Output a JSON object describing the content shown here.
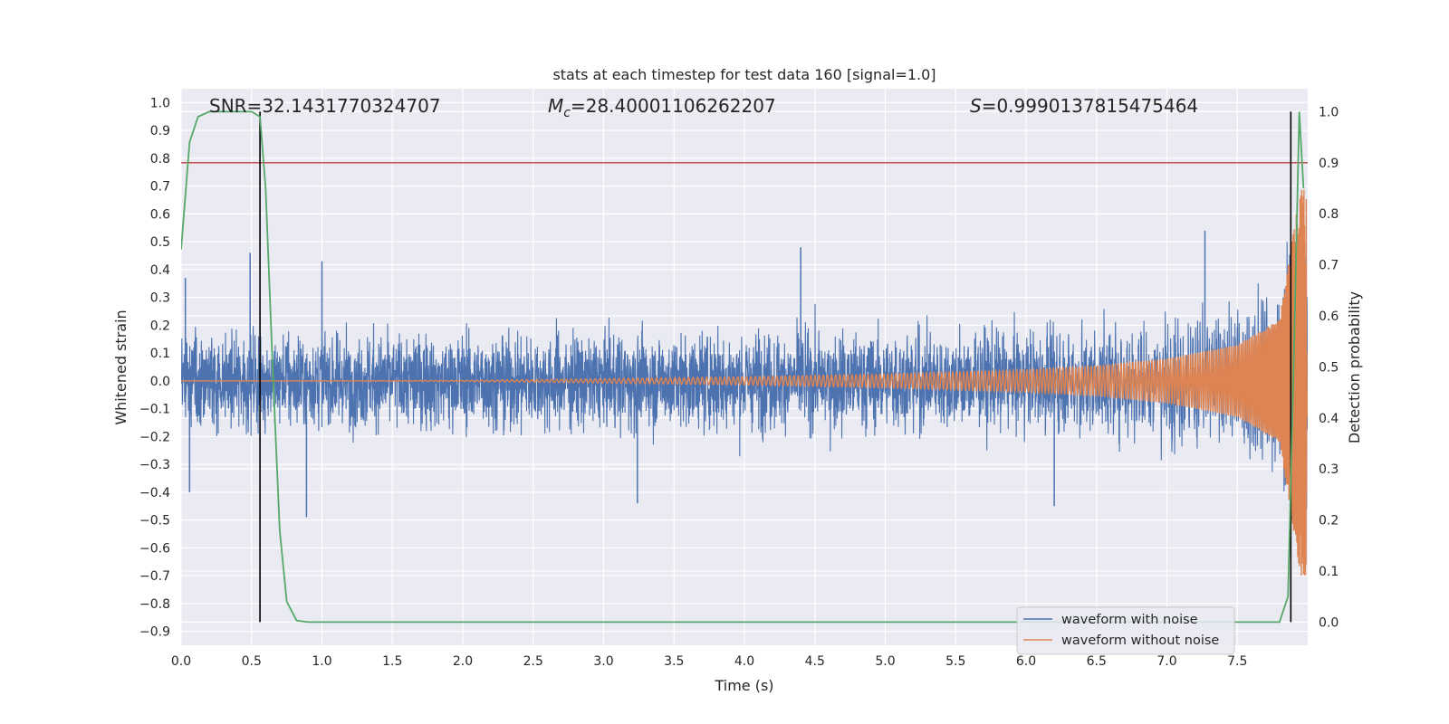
{
  "chart_data": {
    "type": "line",
    "title": "stats at each timestep for test data 160 [signal=1.0]",
    "xlabel": "Time (s)",
    "ylabel": "Whitened strain",
    "y2label": "Detection probability",
    "xlim": [
      0.0,
      8.0
    ],
    "ylim": [
      -0.95,
      1.05
    ],
    "y2lim": [
      -0.0455,
      1.045
    ],
    "xticks": [
      "0.0",
      "0.5",
      "1.0",
      "1.5",
      "2.0",
      "2.5",
      "3.0",
      "3.5",
      "4.0",
      "4.5",
      "5.0",
      "5.5",
      "6.0",
      "6.5",
      "7.0",
      "7.5"
    ],
    "yticks": [
      "1.0",
      "0.9",
      "0.8",
      "0.7",
      "0.6",
      "0.5",
      "0.4",
      "0.3",
      "0.2",
      "0.1",
      "0.0",
      "−0.1",
      "−0.2",
      "−0.3",
      "−0.4",
      "−0.5",
      "−0.6",
      "−0.7",
      "−0.8",
      "−0.9"
    ],
    "y2ticks": [
      "1.0",
      "0.9",
      "0.8",
      "0.7",
      "0.6",
      "0.5",
      "0.4",
      "0.3",
      "0.2",
      "0.1",
      "0.0"
    ],
    "grid": true,
    "annotations": {
      "snr": "SNR=32.1431770324707",
      "mc_symbol": "M",
      "mc_sub": "c",
      "mc_value": "=28.40001106262207",
      "s_symbol": "S",
      "s_value": "=0.9990137815475464"
    },
    "threshold_probability": 0.9,
    "vertical_markers_x": [
      0.56,
      7.88
    ],
    "legend": {
      "placement": "lower-right",
      "entries": [
        "waveform with noise",
        "waveform without noise"
      ]
    },
    "series": [
      {
        "name": "waveform with noise",
        "axis": "left",
        "description_values": "dense noisy strain, amplitude roughly between -0.49 and 0.48",
        "peak_samples": [
          {
            "x": 0.03,
            "y": 0.37
          },
          {
            "x": 0.06,
            "y": -0.4
          },
          {
            "x": 0.49,
            "y": 0.46
          },
          {
            "x": 1.0,
            "y": 0.43
          },
          {
            "x": 0.89,
            "y": -0.49
          },
          {
            "x": 3.24,
            "y": -0.44
          },
          {
            "x": 4.4,
            "y": 0.48
          },
          {
            "x": 6.2,
            "y": -0.45
          },
          {
            "x": 7.27,
            "y": 0.54
          }
        ]
      },
      {
        "name": "waveform without noise",
        "axis": "left",
        "description_values": "chirp signal, amplitude growing from ~0 to ~0.7 near t=7.9 s",
        "envelope": [
          {
            "x": 0.0,
            "y": 0.0
          },
          {
            "x": 2.0,
            "y": 0.002
          },
          {
            "x": 3.0,
            "y": 0.008
          },
          {
            "x": 4.0,
            "y": 0.015
          },
          {
            "x": 5.0,
            "y": 0.025
          },
          {
            "x": 6.0,
            "y": 0.04
          },
          {
            "x": 6.5,
            "y": 0.055
          },
          {
            "x": 7.0,
            "y": 0.08
          },
          {
            "x": 7.5,
            "y": 0.13
          },
          {
            "x": 7.8,
            "y": 0.22
          },
          {
            "x": 7.95,
            "y": 0.7
          }
        ]
      },
      {
        "name": "detection probability",
        "axis": "right",
        "points": [
          {
            "x": 0.0,
            "y": 0.73
          },
          {
            "x": 0.06,
            "y": 0.94
          },
          {
            "x": 0.12,
            "y": 0.99
          },
          {
            "x": 0.2,
            "y": 1.0
          },
          {
            "x": 0.5,
            "y": 1.0
          },
          {
            "x": 0.56,
            "y": 0.99
          },
          {
            "x": 0.6,
            "y": 0.85
          },
          {
            "x": 0.65,
            "y": 0.5
          },
          {
            "x": 0.7,
            "y": 0.18
          },
          {
            "x": 0.75,
            "y": 0.04
          },
          {
            "x": 0.82,
            "y": 0.003
          },
          {
            "x": 0.9,
            "y": 0.0
          },
          {
            "x": 7.8,
            "y": 0.0
          },
          {
            "x": 7.86,
            "y": 0.05
          },
          {
            "x": 7.9,
            "y": 0.5
          },
          {
            "x": 7.94,
            "y": 1.0
          },
          {
            "x": 7.97,
            "y": 0.85
          }
        ]
      }
    ],
    "colors": {
      "background": "#eaeaf2",
      "grid": "#ffffff",
      "noisy": "#4c72b0",
      "clean": "#dd8452",
      "probability": "#55a868",
      "threshold": "#c44e52",
      "marker": "#000000",
      "text": "#262626"
    }
  }
}
